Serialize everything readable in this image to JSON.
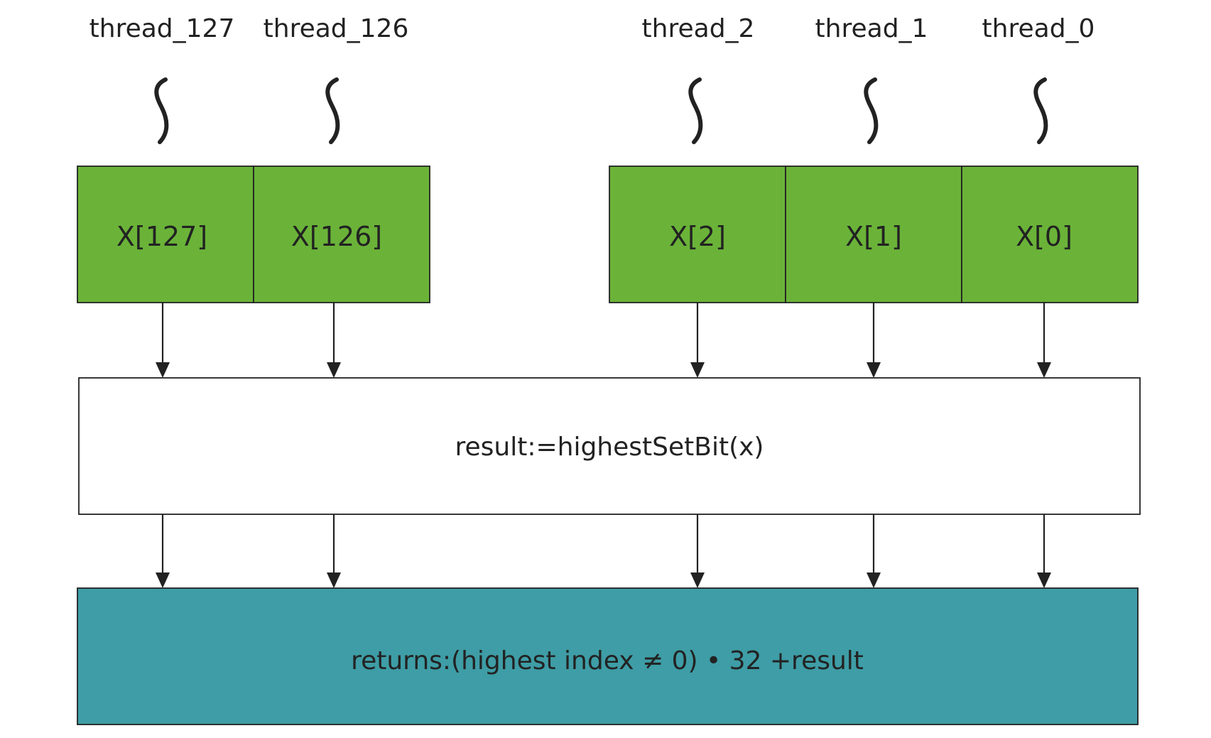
{
  "threads": [
    {
      "label": "thread_127",
      "cell": "X[127]"
    },
    {
      "label": "thread_126",
      "cell": "X[126]"
    },
    {
      "label": "thread_2",
      "cell": "X[2]"
    },
    {
      "label": "thread_1",
      "cell": "X[1]"
    },
    {
      "label": "thread_0",
      "cell": "X[0]"
    }
  ],
  "compute_box": {
    "label": "result:=highestSetBit(x)"
  },
  "return_box": {
    "label": "returns:(highest index ≠ 0) • 32 +result"
  },
  "colors": {
    "cell_fill": "#6AB338",
    "compute_fill": "#FFFFFF",
    "return_fill": "#3E9DA6",
    "stroke": "#222222"
  }
}
